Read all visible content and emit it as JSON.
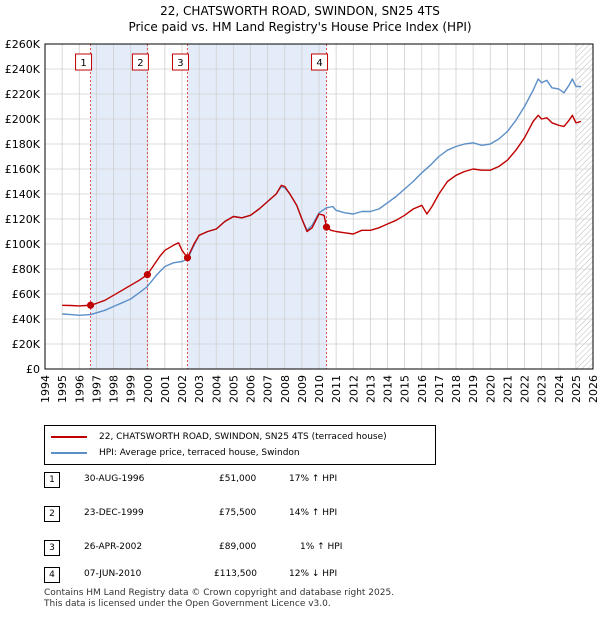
{
  "chart_data": {
    "type": "line",
    "title": "22, CHATSWORTH ROAD, SWINDON, SN25 4TS",
    "subtitle": "Price paid vs. HM Land Registry's House Price Index (HPI)",
    "xlim": [
      1994,
      2026
    ],
    "ylim": [
      0,
      260000
    ],
    "x_ticks": [
      "1994",
      "1995",
      "1996",
      "1997",
      "1998",
      "1999",
      "2000",
      "2001",
      "2002",
      "2003",
      "2004",
      "2005",
      "2006",
      "2007",
      "2008",
      "2009",
      "2010",
      "2011",
      "2012",
      "2013",
      "2014",
      "2015",
      "2016",
      "2017",
      "2018",
      "2019",
      "2020",
      "2021",
      "2022",
      "2023",
      "2024",
      "2025",
      "2026"
    ],
    "y_ticks": [
      {
        "value": 0,
        "label": "£0"
      },
      {
        "value": 20000,
        "label": "£20K"
      },
      {
        "value": 40000,
        "label": "£40K"
      },
      {
        "value": 60000,
        "label": "£60K"
      },
      {
        "value": 80000,
        "label": "£80K"
      },
      {
        "value": 100000,
        "label": "£100K"
      },
      {
        "value": 120000,
        "label": "£120K"
      },
      {
        "value": 140000,
        "label": "£140K"
      },
      {
        "value": 160000,
        "label": "£160K"
      },
      {
        "value": 180000,
        "label": "£180K"
      },
      {
        "value": 200000,
        "label": "£200K"
      },
      {
        "value": 220000,
        "label": "£220K"
      },
      {
        "value": 240000,
        "label": "£240K"
      },
      {
        "value": 260000,
        "label": "£260K"
      }
    ],
    "shaded_ranges": [
      [
        1996.66,
        1999.98
      ],
      [
        2002.32,
        2010.44
      ]
    ],
    "future_hatch_from": 2025.0,
    "series": [
      {
        "name": "22, CHATSWORTH ROAD, SWINDON, SN25 4TS (terraced house)",
        "color": "#c00000",
        "points": [
          [
            1995.0,
            51000
          ],
          [
            1995.5,
            50800
          ],
          [
            1996.0,
            50500
          ],
          [
            1996.4,
            50800
          ],
          [
            1996.66,
            51000
          ],
          [
            1997.0,
            52500
          ],
          [
            1997.5,
            55000
          ],
          [
            1998.0,
            59000
          ],
          [
            1998.5,
            63000
          ],
          [
            1999.0,
            67000
          ],
          [
            1999.5,
            71000
          ],
          [
            1999.98,
            75500
          ],
          [
            2000.3,
            82000
          ],
          [
            2000.7,
            90000
          ],
          [
            2001.0,
            95000
          ],
          [
            2001.5,
            99000
          ],
          [
            2001.8,
            101000
          ],
          [
            2002.0,
            95000
          ],
          [
            2002.32,
            89000
          ],
          [
            2002.7,
            100000
          ],
          [
            2003.0,
            107000
          ],
          [
            2003.5,
            110000
          ],
          [
            2004.0,
            112000
          ],
          [
            2004.5,
            118000
          ],
          [
            2005.0,
            122000
          ],
          [
            2005.5,
            121000
          ],
          [
            2006.0,
            123000
          ],
          [
            2006.5,
            128000
          ],
          [
            2007.0,
            134000
          ],
          [
            2007.5,
            140000
          ],
          [
            2007.8,
            147000
          ],
          [
            2008.0,
            146000
          ],
          [
            2008.3,
            140000
          ],
          [
            2008.7,
            131000
          ],
          [
            2009.0,
            120000
          ],
          [
            2009.3,
            110000
          ],
          [
            2009.6,
            113000
          ],
          [
            2010.0,
            124000
          ],
          [
            2010.3,
            123000
          ],
          [
            2010.44,
            113500
          ],
          [
            2010.7,
            111000
          ],
          [
            2011.0,
            110000
          ],
          [
            2011.5,
            109000
          ],
          [
            2012.0,
            108000
          ],
          [
            2012.5,
            111000
          ],
          [
            2013.0,
            111000
          ],
          [
            2013.5,
            113000
          ],
          [
            2014.0,
            116000
          ],
          [
            2014.5,
            119000
          ],
          [
            2015.0,
            123000
          ],
          [
            2015.5,
            128000
          ],
          [
            2016.0,
            131000
          ],
          [
            2016.3,
            124000
          ],
          [
            2016.6,
            130000
          ],
          [
            2017.0,
            140000
          ],
          [
            2017.5,
            150000
          ],
          [
            2018.0,
            155000
          ],
          [
            2018.5,
            158000
          ],
          [
            2019.0,
            160000
          ],
          [
            2019.5,
            159000
          ],
          [
            2020.0,
            159000
          ],
          [
            2020.5,
            162000
          ],
          [
            2021.0,
            167000
          ],
          [
            2021.5,
            175000
          ],
          [
            2022.0,
            185000
          ],
          [
            2022.5,
            198000
          ],
          [
            2022.8,
            203000
          ],
          [
            2023.0,
            200000
          ],
          [
            2023.3,
            201000
          ],
          [
            2023.6,
            197000
          ],
          [
            2024.0,
            195000
          ],
          [
            2024.3,
            194000
          ],
          [
            2024.6,
            199000
          ],
          [
            2024.8,
            203000
          ],
          [
            2025.0,
            197000
          ],
          [
            2025.3,
            198000
          ]
        ]
      },
      {
        "name": "HPI: Average price, terraced house, Swindon",
        "color": "#5b8fc8",
        "points": [
          [
            1995.0,
            44000
          ],
          [
            1995.5,
            43500
          ],
          [
            1996.0,
            43000
          ],
          [
            1996.66,
            43500
          ],
          [
            1997.0,
            45000
          ],
          [
            1997.5,
            47000
          ],
          [
            1998.0,
            50000
          ],
          [
            1998.5,
            53000
          ],
          [
            1999.0,
            56000
          ],
          [
            1999.5,
            61000
          ],
          [
            1999.98,
            66000
          ],
          [
            2000.5,
            75000
          ],
          [
            2001.0,
            82000
          ],
          [
            2001.5,
            85000
          ],
          [
            2002.0,
            86000
          ],
          [
            2002.32,
            88000
          ],
          [
            2002.7,
            99000
          ],
          [
            2003.0,
            107000
          ],
          [
            2003.5,
            110000
          ],
          [
            2004.0,
            112000
          ],
          [
            2004.5,
            118000
          ],
          [
            2005.0,
            122000
          ],
          [
            2005.5,
            121000
          ],
          [
            2006.0,
            123000
          ],
          [
            2006.5,
            128000
          ],
          [
            2007.0,
            134000
          ],
          [
            2007.5,
            140000
          ],
          [
            2007.8,
            146000
          ],
          [
            2008.0,
            145000
          ],
          [
            2008.3,
            140000
          ],
          [
            2008.7,
            131000
          ],
          [
            2009.0,
            120000
          ],
          [
            2009.3,
            111000
          ],
          [
            2009.6,
            115000
          ],
          [
            2010.0,
            125000
          ],
          [
            2010.44,
            129000
          ],
          [
            2010.8,
            130000
          ],
          [
            2011.0,
            127000
          ],
          [
            2011.5,
            125000
          ],
          [
            2012.0,
            124000
          ],
          [
            2012.5,
            126000
          ],
          [
            2013.0,
            126000
          ],
          [
            2013.5,
            128000
          ],
          [
            2014.0,
            133000
          ],
          [
            2014.5,
            138000
          ],
          [
            2015.0,
            144000
          ],
          [
            2015.5,
            150000
          ],
          [
            2016.0,
            157000
          ],
          [
            2016.5,
            163000
          ],
          [
            2017.0,
            170000
          ],
          [
            2017.5,
            175000
          ],
          [
            2018.0,
            178000
          ],
          [
            2018.5,
            180000
          ],
          [
            2019.0,
            181000
          ],
          [
            2019.5,
            179000
          ],
          [
            2020.0,
            180000
          ],
          [
            2020.5,
            184000
          ],
          [
            2021.0,
            190000
          ],
          [
            2021.5,
            199000
          ],
          [
            2022.0,
            210000
          ],
          [
            2022.5,
            223000
          ],
          [
            2022.8,
            232000
          ],
          [
            2023.0,
            229000
          ],
          [
            2023.3,
            231000
          ],
          [
            2023.6,
            225000
          ],
          [
            2024.0,
            224000
          ],
          [
            2024.3,
            221000
          ],
          [
            2024.6,
            227000
          ],
          [
            2024.8,
            232000
          ],
          [
            2025.0,
            226000
          ],
          [
            2025.3,
            226000
          ]
        ]
      }
    ],
    "sales": [
      {
        "num": "1",
        "date": "30-AUG-1996",
        "price": "£51,000",
        "hpi": "17% ↑ HPI",
        "x": 1996.66,
        "y": 51000
      },
      {
        "num": "2",
        "date": "23-DEC-1999",
        "price": "£75,500",
        "hpi": "14% ↑ HPI",
        "x": 1999.98,
        "y": 75500
      },
      {
        "num": "3",
        "date": "26-APR-2002",
        "price": "£89,000",
        "hpi": "1% ↑ HPI",
        "x": 2002.32,
        "y": 89000
      },
      {
        "num": "4",
        "date": "07-JUN-2010",
        "price": "£113,500",
        "hpi": "12% ↓ HPI",
        "x": 2010.44,
        "y": 113500
      }
    ]
  },
  "footer": {
    "line1": "Contains HM Land Registry data © Crown copyright and database right 2025.",
    "line2": "This data is licensed under the Open Government Licence v3.0."
  }
}
